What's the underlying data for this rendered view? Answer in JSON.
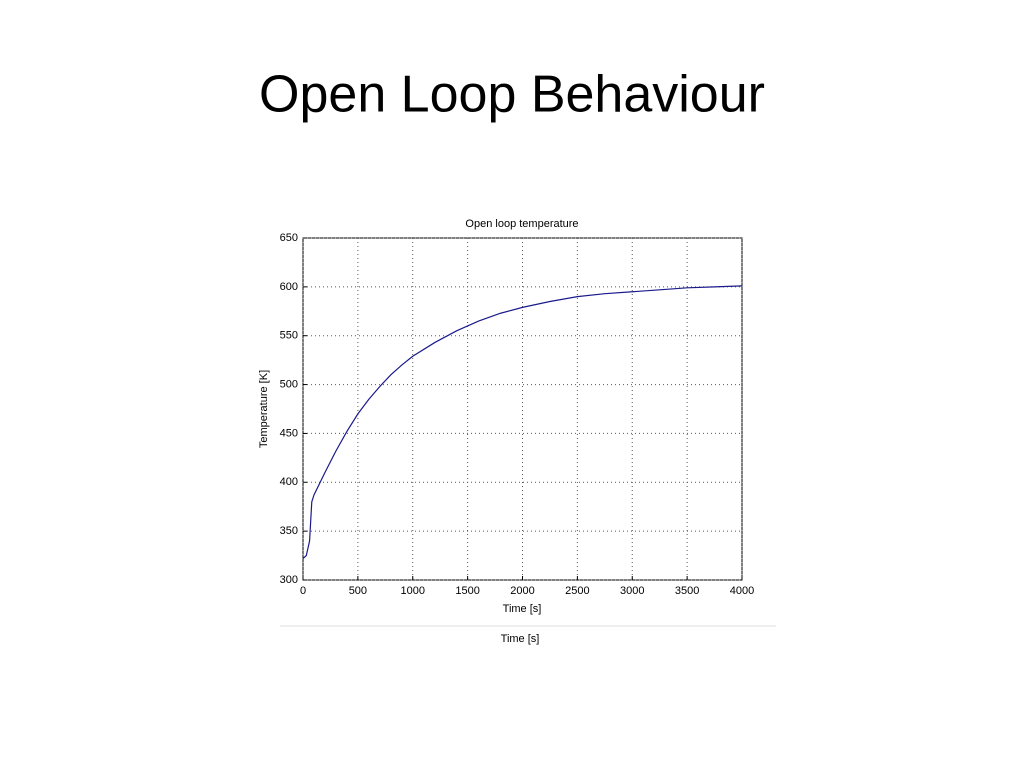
{
  "slide_title": "Open Loop Behaviour",
  "caption": "Time [s]",
  "chart_data": {
    "type": "line",
    "title": "Open loop temperature",
    "x_label": "Time [s]",
    "y_label": "Temperature [K]",
    "x": [
      0,
      30,
      60,
      80,
      100,
      200,
      300,
      400,
      500,
      600,
      700,
      800,
      900,
      1000,
      1200,
      1400,
      1600,
      1800,
      2000,
      2250,
      2500,
      2750,
      3000,
      3250,
      3500,
      3750,
      4000
    ],
    "series": [
      {
        "color": "#1a1a8c",
        "values": [
          322,
          325,
          340,
          380,
          387,
          410,
          432,
          452,
          470,
          485,
          498,
          510,
          520,
          529,
          543,
          555,
          565,
          573,
          579,
          585,
          590,
          593,
          595,
          597,
          599,
          600,
          601
        ]
      }
    ],
    "xlim": [
      0,
      4000
    ],
    "xticks": [
      0,
      500,
      1000,
      1500,
      2000,
      2500,
      3000,
      3500,
      4000
    ],
    "ylim": [
      300,
      650
    ],
    "yticks": [
      300,
      350,
      400,
      450,
      500,
      550,
      600,
      650
    ],
    "grid": true
  }
}
